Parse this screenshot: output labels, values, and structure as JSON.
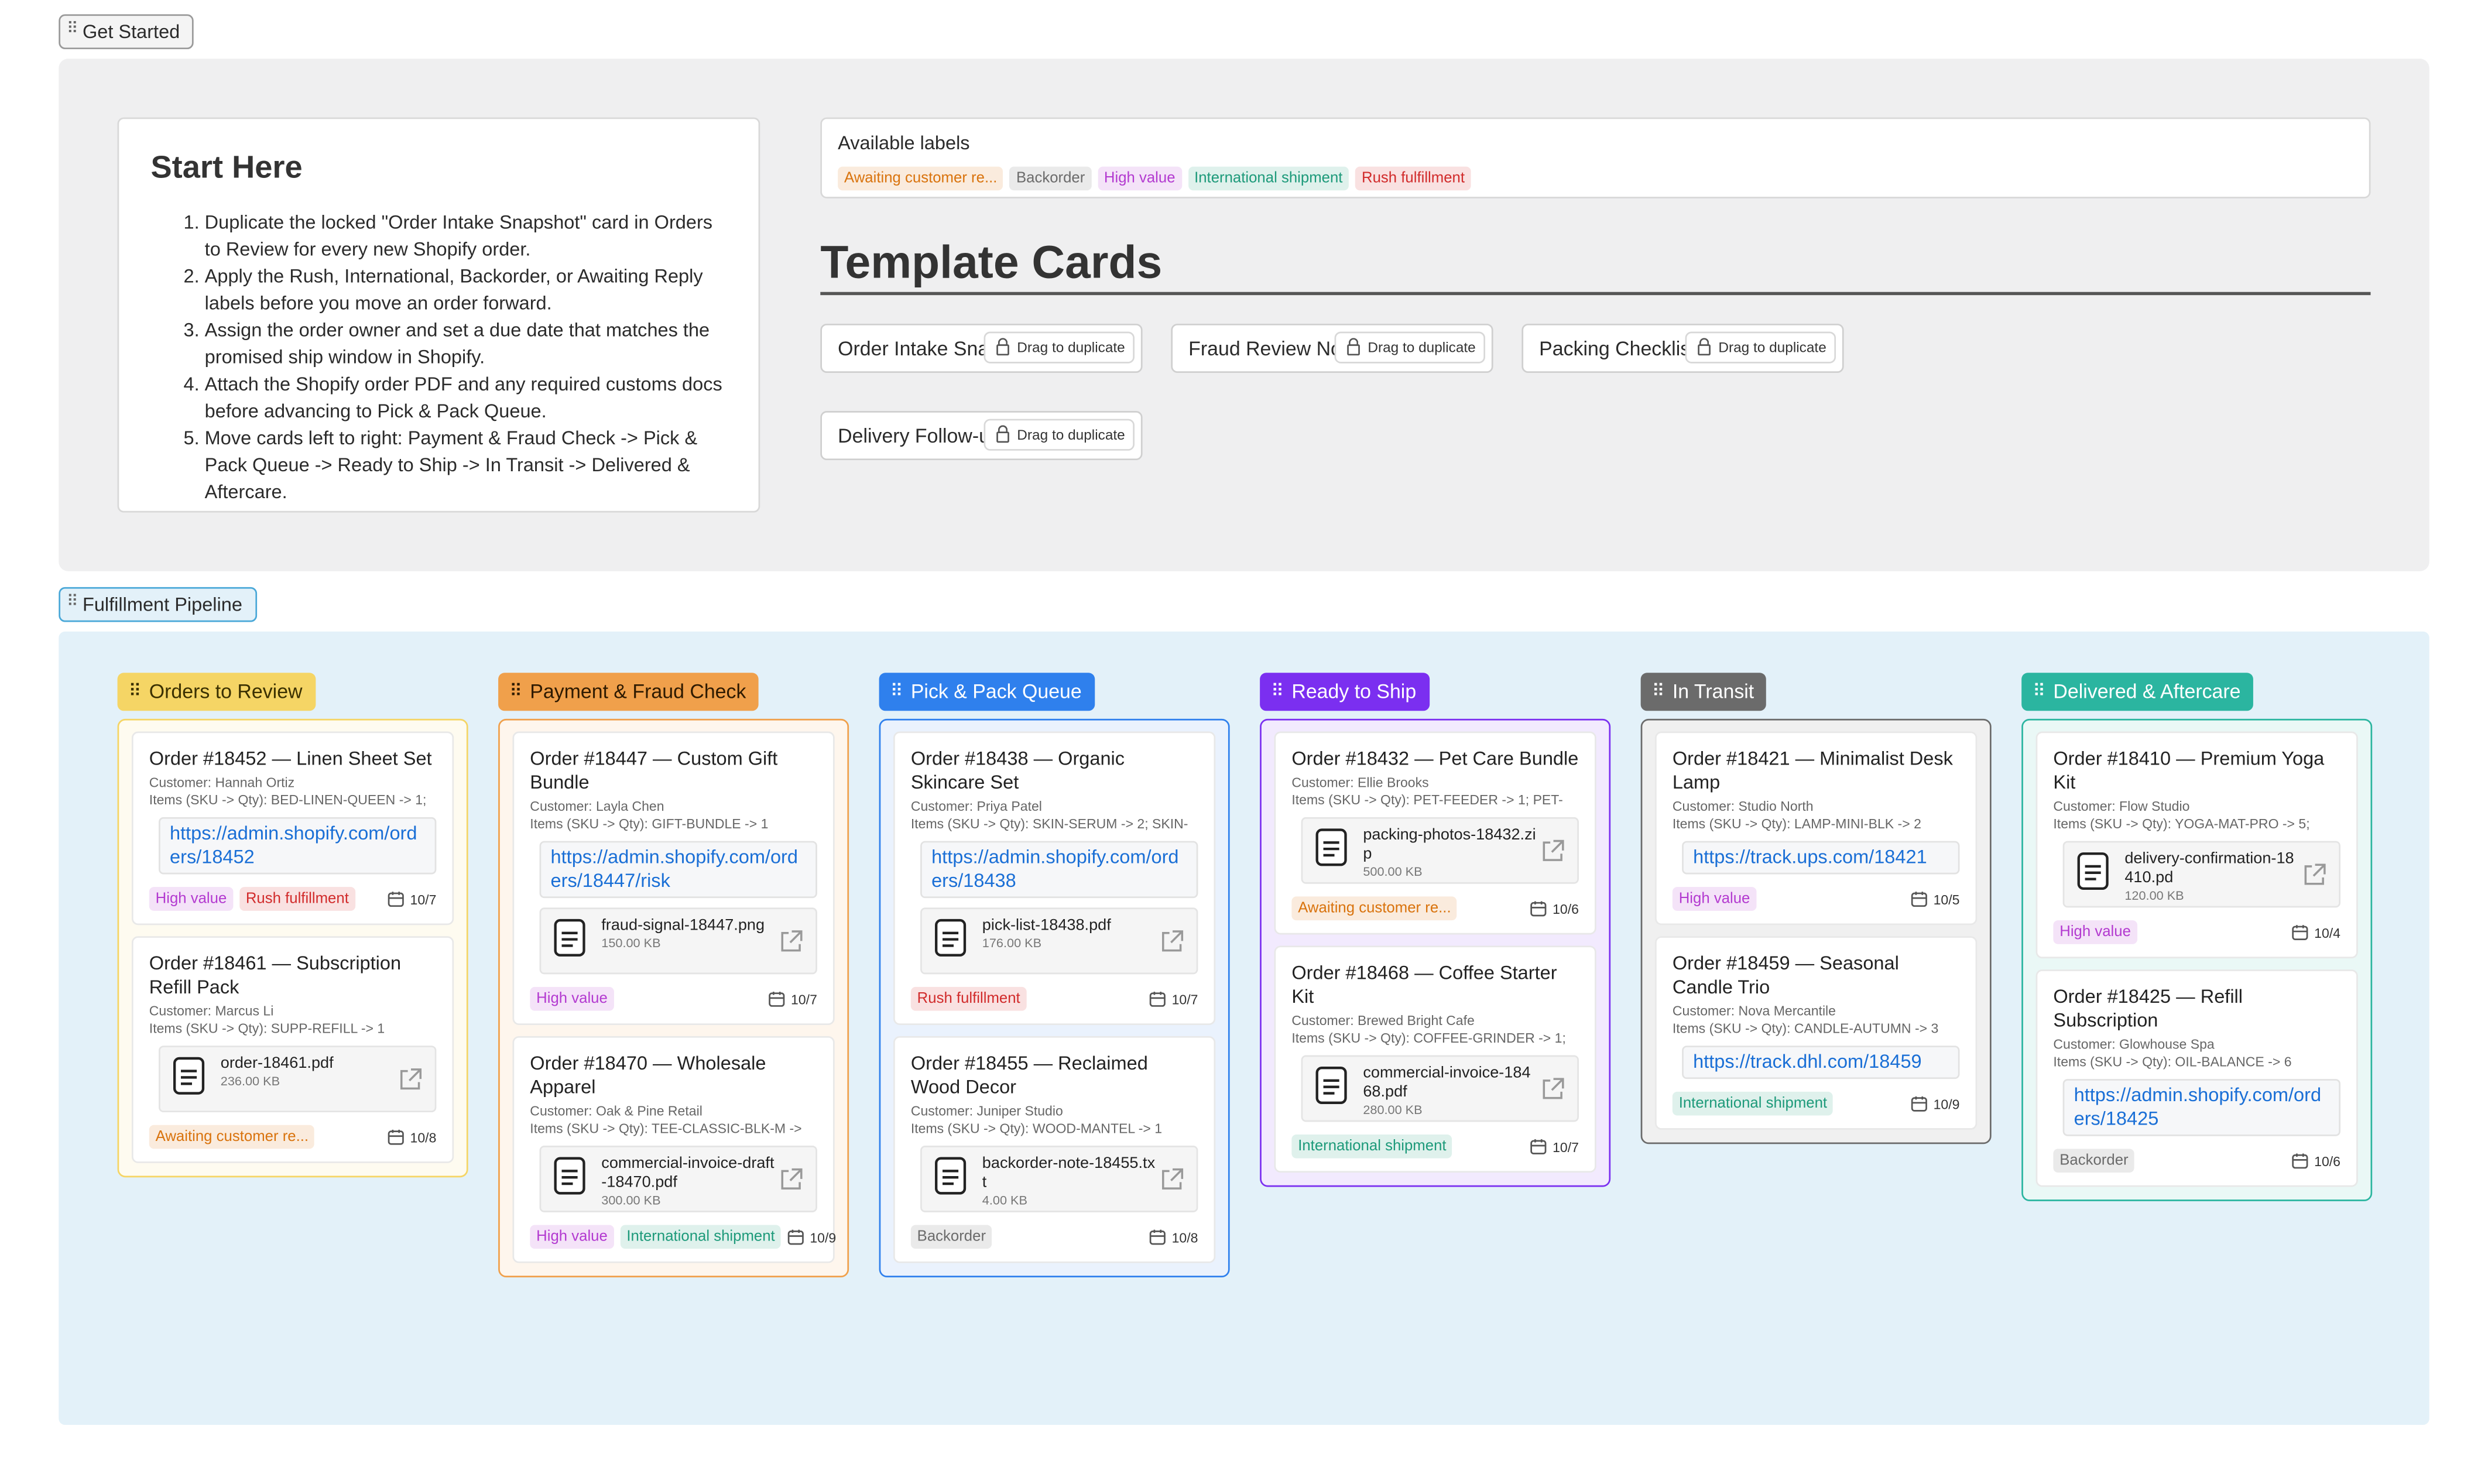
{
  "get_started": {
    "label": "Get Started"
  },
  "start_here": {
    "title": "Start Here",
    "steps": [
      "Duplicate the locked \"Order Intake Snapshot\" card in Orders to Review for every new Shopify order.",
      "Apply the Rush, International, Backorder, or Awaiting Reply labels before you move an order forward.",
      "Assign the order owner and set a due date that matches the promised ship window in Shopify.",
      "Attach the Shopify order PDF and any required customs docs before advancing to Pick & Pack Queue.",
      "Move cards left to right: Payment & Fraud Check -> Pick & Pack Queue -> Ready to Ship -> In Transit -> Delivered & Aftercare."
    ]
  },
  "available_labels": {
    "title": "Available labels",
    "labels": [
      {
        "text": "Awaiting customer re...",
        "color": "#d9730d"
      },
      {
        "text": "Backorder",
        "color": "#6b6b6b"
      },
      {
        "text": "High value",
        "color": "#b33ad0"
      },
      {
        "text": "International shipment",
        "color": "#1d9a7a"
      },
      {
        "text": "Rush fulfillment",
        "color": "#d12b2b"
      }
    ]
  },
  "template_cards": {
    "title": "Template Cards",
    "badge": "Drag to duplicate",
    "cards": [
      "Order Intake Sna",
      "Fraud Review No",
      "Packing Checklis",
      "Delivery Follow-u"
    ]
  },
  "pipeline": {
    "label": "Fulfillment Pipeline",
    "columns": [
      {
        "name": "Orders to Review",
        "color": "#f5d565",
        "text_color": "#3a3000",
        "cards": [
          {
            "title": "Order #18452 — Linen Sheet Set",
            "customer": "Customer: Hannah Ortiz",
            "items": "Items (SKU -> Qty): BED-LINEN-QUEEN -> 1;",
            "link": "https://admin.shopify.com/orders/18452",
            "labels": [
              "High value",
              "Rush fulfillment"
            ],
            "due": "10/7"
          },
          {
            "title": "Order #18461 — Subscription Refill Pack",
            "customer": "Customer: Marcus Li",
            "items": "Items (SKU -> Qty): SUPP-REFILL -> 1",
            "file": {
              "name": "order-18461.pdf",
              "size": "236.00 KB"
            },
            "labels": [
              "Awaiting customer re..."
            ],
            "due": "10/8"
          }
        ]
      },
      {
        "name": "Payment & Fraud Check",
        "color": "#f0a04b",
        "text_color": "#2e1a00",
        "cards": [
          {
            "title": "Order #18447 — Custom Gift Bundle",
            "customer": "Customer: Layla Chen",
            "items": "Items (SKU -> Qty): GIFT-BUNDLE -> 1",
            "link": "https://admin.shopify.com/orders/18447/risk",
            "file": {
              "name": "fraud-signal-18447.png",
              "size": "150.00 KB"
            },
            "labels": [
              "High value"
            ],
            "due": "10/7"
          },
          {
            "title": "Order #18470 — Wholesale Apparel",
            "customer": "Customer: Oak & Pine Retail",
            "items": "Items (SKU -> Qty): TEE-CLASSIC-BLK-M ->",
            "file": {
              "name": "commercial-invoice-draft-18470.pdf",
              "size": "300.00 KB"
            },
            "labels": [
              "High value",
              "International shipment"
            ],
            "due": "10/9"
          }
        ]
      },
      {
        "name": "Pick & Pack Queue",
        "color": "#2f80ed",
        "text_color": "#ffffff",
        "cards": [
          {
            "title": "Order #18438 — Organic Skincare Set",
            "customer": "Customer: Priya Patel",
            "items": "Items (SKU -> Qty): SKIN-SERUM -> 2; SKIN-",
            "link": "https://admin.shopify.com/orders/18438",
            "file": {
              "name": "pick-list-18438.pdf",
              "size": "176.00 KB"
            },
            "labels": [
              "Rush fulfillment"
            ],
            "due": "10/7"
          },
          {
            "title": "Order #18455 — Reclaimed Wood Decor",
            "customer": "Customer: Juniper Studio",
            "items": "Items (SKU -> Qty): WOOD-MANTEL -> 1",
            "file": {
              "name": "backorder-note-18455.txt",
              "size": "4.00 KB"
            },
            "labels": [
              "Backorder"
            ],
            "due": "10/8"
          }
        ]
      },
      {
        "name": "Ready to Ship",
        "color": "#7b2ff0",
        "text_color": "#ffffff",
        "cards": [
          {
            "title": "Order #18432 — Pet Care Bundle",
            "customer": "Customer: Ellie Brooks",
            "items": "Items (SKU -> Qty): PET-FEEDER -> 1; PET-",
            "file": {
              "name": "packing-photos-18432.zip",
              "size": "500.00 KB"
            },
            "labels": [
              "Awaiting customer re..."
            ],
            "due": "10/6"
          },
          {
            "title": "Order #18468 — Coffee Starter Kit",
            "customer": "Customer: Brewed Bright Cafe",
            "items": "Items (SKU -> Qty): COFFEE-GRINDER -> 1;",
            "file": {
              "name": "commercial-invoice-18468.pdf",
              "size": "280.00 KB"
            },
            "labels": [
              "International shipment"
            ],
            "due": "10/7"
          }
        ]
      },
      {
        "name": "In Transit",
        "color": "#6b6b6b",
        "text_color": "#ffffff",
        "cards": [
          {
            "title": "Order #18421 — Minimalist Desk Lamp",
            "customer": "Customer: Studio North",
            "items": "Items (SKU -> Qty): LAMP-MINI-BLK -> 2",
            "link": "https://track.ups.com/18421",
            "labels": [
              "High value"
            ],
            "due": "10/5"
          },
          {
            "title": "Order #18459 — Seasonal Candle Trio",
            "customer": "Customer: Nova Mercantile",
            "items": "Items (SKU -> Qty): CANDLE-AUTUMN -> 3",
            "link": "https://track.dhl.com/18459",
            "labels": [
              "International shipment"
            ],
            "due": "10/9"
          }
        ]
      },
      {
        "name": "Delivered & Aftercare",
        "color": "#2bb5a0",
        "text_color": "#ffffff",
        "cards": [
          {
            "title": "Order #18410 — Premium Yoga Kit",
            "customer": "Customer: Flow Studio",
            "items": "Items (SKU -> Qty): YOGA-MAT-PRO -> 5;",
            "file": {
              "name": "delivery-confirmation-18410.pd",
              "size": "120.00 KB"
            },
            "labels": [
              "High value"
            ],
            "due": "10/4"
          },
          {
            "title": "Order #18425 — Refill Subscription",
            "customer": "Customer: Glowhouse Spa",
            "items": "Items (SKU -> Qty): OIL-BALANCE -> 6",
            "link": "https://admin.shopify.com/orders/18425",
            "labels": [
              "Backorder"
            ],
            "due": "10/6"
          }
        ]
      }
    ]
  }
}
